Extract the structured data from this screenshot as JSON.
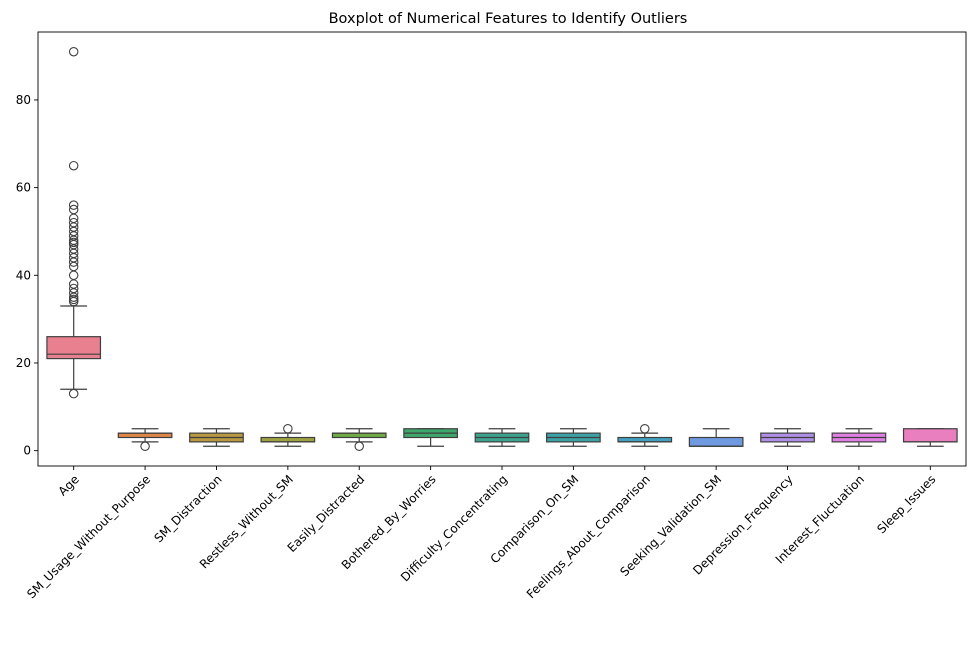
{
  "chart_data": {
    "type": "boxplot",
    "title": "Boxplot of Numerical Features to Identify Outliers",
    "xlabel": "",
    "ylabel": "",
    "ylim": [
      -3.5,
      95.5
    ],
    "yticks": [
      0,
      20,
      40,
      60,
      80
    ],
    "grid": false,
    "legend": "none",
    "series": [
      {
        "name": "Age",
        "color": "#e8808f",
        "q1": 21,
        "median": 22,
        "q3": 26,
        "whisker_low": 14,
        "whisker_high": 33,
        "outliers": [
          13,
          34,
          34.5,
          35,
          36,
          37,
          38,
          40,
          42,
          43,
          44,
          45,
          46,
          47,
          47.5,
          48,
          49,
          50,
          51,
          52,
          53,
          55,
          56,
          65,
          91
        ]
      },
      {
        "name": "SM_Usage_Without_Purpose",
        "color": "#de8747",
        "q1": 3,
        "median": 4,
        "q3": 4,
        "whisker_low": 2,
        "whisker_high": 5,
        "outliers": [
          1
        ]
      },
      {
        "name": "SM_Distraction",
        "color": "#b89840",
        "q1": 2,
        "median": 3,
        "q3": 4,
        "whisker_low": 1,
        "whisker_high": 5,
        "outliers": []
      },
      {
        "name": "Restless_Without_SM",
        "color": "#9fa33f",
        "q1": 2,
        "median": 2,
        "q3": 3,
        "whisker_low": 1,
        "whisker_high": 4,
        "outliers": [
          5
        ]
      },
      {
        "name": "Easily_Distracted",
        "color": "#70ab46",
        "q1": 3,
        "median": 4,
        "q3": 4,
        "whisker_low": 2,
        "whisker_high": 5,
        "outliers": [
          1
        ]
      },
      {
        "name": "Bothered_By_Worries",
        "color": "#3ea76c",
        "q1": 3,
        "median": 4,
        "q3": 5,
        "whisker_low": 1,
        "whisker_high": 5,
        "outliers": []
      },
      {
        "name": "Difficulty_Concentrating",
        "color": "#3ba38e",
        "q1": 2,
        "median": 3,
        "q3": 4,
        "whisker_low": 1,
        "whisker_high": 5,
        "outliers": []
      },
      {
        "name": "Comparison_On_SM",
        "color": "#3da2a5",
        "q1": 2,
        "median": 3,
        "q3": 4,
        "whisker_low": 1,
        "whisker_high": 5,
        "outliers": []
      },
      {
        "name": "Feelings_About_Comparison",
        "color": "#41a1bf",
        "q1": 2,
        "median": 2,
        "q3": 3,
        "whisker_low": 1,
        "whisker_high": 4,
        "outliers": [
          5
        ]
      },
      {
        "name": "Seeking_Validation_SM",
        "color": "#6f9ae0",
        "q1": 1,
        "median": 1,
        "q3": 3,
        "whisker_low": 1,
        "whisker_high": 5,
        "outliers": []
      },
      {
        "name": "Depression_Frequency",
        "color": "#b08fe6",
        "q1": 2,
        "median": 3,
        "q3": 4,
        "whisker_low": 1,
        "whisker_high": 5,
        "outliers": []
      },
      {
        "name": "Interest_Fluctuation",
        "color": "#e07fe4",
        "q1": 2,
        "median": 3,
        "q3": 4,
        "whisker_low": 1,
        "whisker_high": 5,
        "outliers": []
      },
      {
        "name": "Sleep_Issues",
        "color": "#ea7fc0",
        "q1": 2,
        "median": 2,
        "q3": 5,
        "whisker_low": 1,
        "whisker_high": 5,
        "outliers": []
      }
    ]
  }
}
